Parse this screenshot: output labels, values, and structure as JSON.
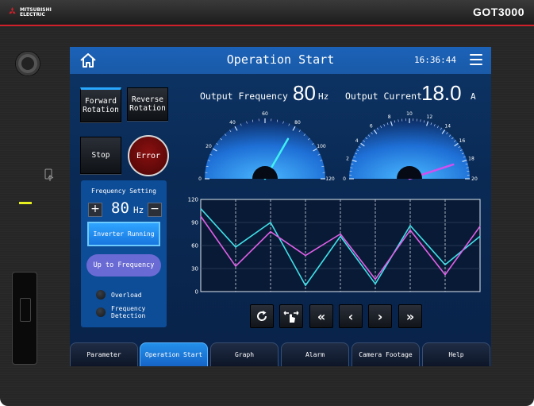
{
  "device": {
    "brand_line1": "MITSUBISHI",
    "brand_line2": "ELECTRIC",
    "model": "GOT3000",
    "accent_color": "#d0202a"
  },
  "header": {
    "title": "Operation Start",
    "time": "16:36:44",
    "home_icon": "home-icon",
    "menu_icon": "hamburger-menu-icon"
  },
  "controls": {
    "forward_rotation": "Forward\nRotation",
    "reverse_rotation": "Reverse\nRotation",
    "stop": "Stop",
    "error": "Error"
  },
  "frequency_panel": {
    "title": "Frequency Setting",
    "plus": "+",
    "minus": "−",
    "value": "80",
    "unit": "Hz",
    "inverter_running": "Inverter Running",
    "up_to_frequency": "Up to Frequency",
    "overload": "Overload",
    "frequency_detection": "Frequency\nDetection"
  },
  "gauges": {
    "frequency": {
      "label": "Output Frequency",
      "value": "80",
      "unit": "Hz",
      "ticks": [
        "0",
        "20",
        "40",
        "60",
        "80",
        "100",
        "120"
      ],
      "min": 0,
      "max": 120,
      "reading": 80
    },
    "current": {
      "label": "Output Current",
      "value": "18.0",
      "unit": "A",
      "ticks": [
        "0",
        "2",
        "4",
        "6",
        "8",
        "10",
        "12",
        "14",
        "16",
        "18",
        "20"
      ],
      "min": 0,
      "max": 20,
      "reading": 18
    }
  },
  "chart_data": {
    "type": "line",
    "ylim": [
      0,
      120
    ],
    "yticks": [
      "0",
      "30",
      "60",
      "90",
      "120"
    ],
    "x": [
      0,
      1,
      2,
      3,
      4,
      5,
      6,
      7,
      8
    ],
    "series": [
      {
        "color": "#40e0e8",
        "values": [
          108,
          58,
          90,
          8,
          72,
          10,
          86,
          35,
          72
        ]
      },
      {
        "color": "#e060e8",
        "values": [
          98,
          33,
          78,
          47,
          75,
          16,
          80,
          22,
          85
        ]
      }
    ]
  },
  "chart_nav": {
    "refresh_icon": "refresh-icon",
    "scroll_icon": "touch-scroll-icon",
    "first_icon": "double-left-icon",
    "prev_icon": "left-icon",
    "next_icon": "right-icon",
    "last_icon": "double-right-icon"
  },
  "tabs": [
    {
      "label": "Parameter",
      "selected": false
    },
    {
      "label": "Operation Start",
      "selected": true
    },
    {
      "label": "Graph",
      "selected": false
    },
    {
      "label": "Alarm",
      "selected": false
    },
    {
      "label": "Camera Footage",
      "selected": false
    },
    {
      "label": "Help",
      "selected": false
    }
  ]
}
